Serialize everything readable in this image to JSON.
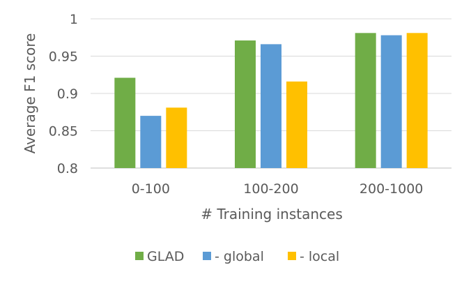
{
  "chart_data": {
    "type": "bar",
    "title": "",
    "xlabel": "# Training instances",
    "ylabel": "Average F1 score",
    "categories": [
      "0-100",
      "100-200",
      "200-1000"
    ],
    "ylim": [
      0.8,
      1
    ],
    "yticks": [
      "0.8",
      "0.85",
      "0.9",
      "0.95",
      "1"
    ],
    "grid": true,
    "legend_position": "bottom",
    "series": [
      {
        "name": "GLAD",
        "color": "#70ad47",
        "values": [
          0.921,
          0.971,
          0.981
        ]
      },
      {
        "name": "- global",
        "color": "#5b9bd5",
        "values": [
          0.87,
          0.966,
          0.978
        ]
      },
      {
        "name": "- local",
        "color": "#ffc000",
        "values": [
          0.881,
          0.916,
          0.981
        ]
      }
    ]
  }
}
